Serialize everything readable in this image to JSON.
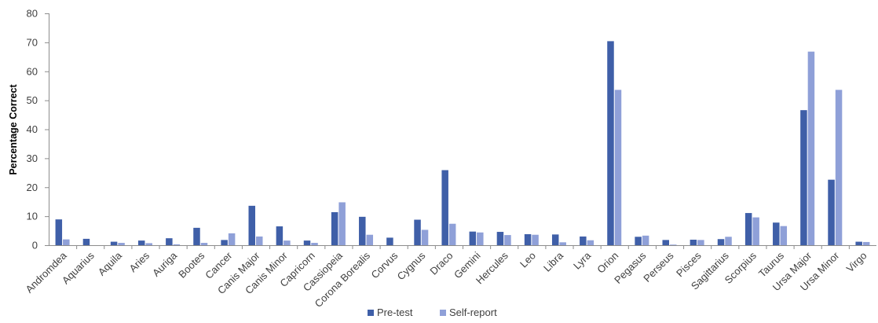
{
  "chart_data": {
    "type": "bar",
    "title": "",
    "xlabel": "",
    "ylabel": "Percentage Correct",
    "ylim": [
      0,
      80
    ],
    "yticks": [
      0,
      10,
      20,
      30,
      40,
      50,
      60,
      70,
      80
    ],
    "grid": false,
    "legend_position": "bottom",
    "categories": [
      "Andromdea",
      "Aquarius",
      "Aquila",
      "Aries",
      "Auriga",
      "Bootes",
      "Cancer",
      "Canis Major",
      "Canis Minor",
      "Capricorn",
      "Cassiopeia",
      "Corona Borealis",
      "Corvus",
      "Cygnus",
      "Draco",
      "Gemini",
      "Hercules",
      "Leo",
      "Libra",
      "Lyra",
      "Orion",
      "Pegasus",
      "Perseus",
      "Pisces",
      "Sagittarius",
      "Scorpius",
      "Taurus",
      "Ursa Major",
      "Ursa Minor",
      "Virgo"
    ],
    "series": [
      {
        "name": "Pre-test",
        "color": "#3f5fa8",
        "values": [
          8.9,
          2.2,
          1.2,
          1.6,
          2.4,
          6.0,
          1.8,
          13.6,
          6.5,
          1.6,
          11.4,
          9.8,
          2.6,
          8.8,
          25.9,
          4.7,
          4.6,
          3.8,
          3.7,
          3.0,
          70.4,
          2.9,
          1.8,
          1.9,
          2.1,
          11.1,
          7.8,
          46.6,
          22.6,
          1.2
        ]
      },
      {
        "name": "Self-report",
        "color": "#8fa0d8",
        "values": [
          2.0,
          0,
          0.8,
          0.7,
          0.3,
          0.8,
          4.1,
          3.0,
          1.6,
          0.8,
          14.8,
          3.6,
          0,
          5.3,
          7.4,
          4.4,
          3.5,
          3.6,
          1.0,
          1.7,
          53.6,
          3.3,
          0.2,
          1.8,
          2.9,
          9.6,
          6.6,
          66.8,
          53.6,
          1.1
        ]
      }
    ]
  }
}
